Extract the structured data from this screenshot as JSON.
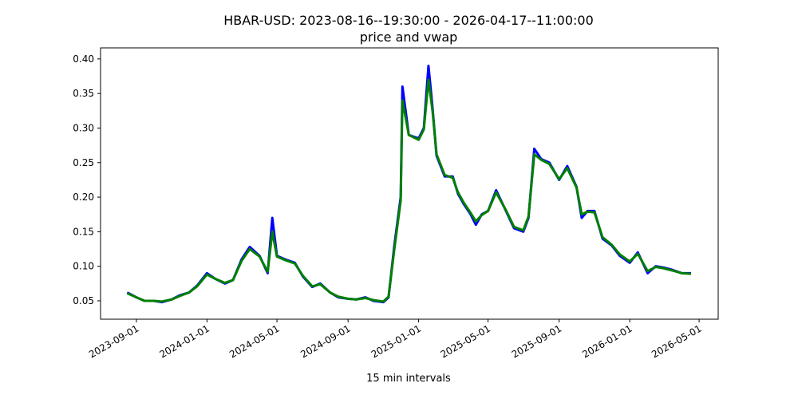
{
  "chart_data": {
    "type": "line",
    "title": "HBAR-USD: 2023-08-16--19:30:00 - 2026-04-17--11:00:00",
    "subtitle": "price and vwap",
    "x_label": "15 min intervals",
    "x": [
      "2023-08-16",
      "2023-09-01",
      "2023-09-15",
      "2023-10-01",
      "2023-10-15",
      "2023-11-01",
      "2023-11-15",
      "2023-12-01",
      "2023-12-15",
      "2024-01-01",
      "2024-01-15",
      "2024-02-01",
      "2024-02-15",
      "2024-03-01",
      "2024-03-15",
      "2024-04-01",
      "2024-04-15",
      "2024-04-23",
      "2024-05-01",
      "2024-05-15",
      "2024-06-01",
      "2024-06-15",
      "2024-07-01",
      "2024-07-15",
      "2024-08-01",
      "2024-08-15",
      "2024-09-01",
      "2024-09-15",
      "2024-10-01",
      "2024-10-15",
      "2024-11-01",
      "2024-11-10",
      "2024-11-20",
      "2024-12-01",
      "2024-12-04",
      "2024-12-15",
      "2025-01-01",
      "2025-01-10",
      "2025-01-18",
      "2025-01-25",
      "2025-02-01",
      "2025-02-15",
      "2025-03-01",
      "2025-03-10",
      "2025-03-20",
      "2025-04-01",
      "2025-04-10",
      "2025-04-20",
      "2025-05-01",
      "2025-05-15",
      "2025-06-01",
      "2025-06-15",
      "2025-07-01",
      "2025-07-10",
      "2025-07-20",
      "2025-08-01",
      "2025-08-15",
      "2025-09-01",
      "2025-09-15",
      "2025-10-01",
      "2025-10-10",
      "2025-10-20",
      "2025-11-01",
      "2025-11-15",
      "2025-12-01",
      "2025-12-15",
      "2026-01-01",
      "2026-01-15",
      "2026-02-01",
      "2026-02-15",
      "2026-03-01",
      "2026-03-15",
      "2026-04-01",
      "2026-04-17"
    ],
    "series": [
      {
        "color": "#0000ff",
        "values": [
          0.062,
          0.055,
          0.05,
          0.05,
          0.048,
          0.052,
          0.058,
          0.062,
          0.072,
          0.09,
          0.082,
          0.075,
          0.08,
          0.11,
          0.128,
          0.115,
          0.09,
          0.17,
          0.115,
          0.11,
          0.105,
          0.085,
          0.07,
          0.075,
          0.062,
          0.055,
          0.053,
          0.052,
          0.055,
          0.05,
          0.048,
          0.055,
          0.13,
          0.2,
          0.36,
          0.29,
          0.285,
          0.3,
          0.39,
          0.33,
          0.26,
          0.23,
          0.23,
          0.205,
          0.19,
          0.175,
          0.16,
          0.175,
          0.18,
          0.21,
          0.18,
          0.155,
          0.15,
          0.17,
          0.27,
          0.255,
          0.25,
          0.225,
          0.245,
          0.215,
          0.17,
          0.18,
          0.18,
          0.14,
          0.13,
          0.115,
          0.105,
          0.12,
          0.09,
          0.1,
          0.098,
          0.095,
          0.09,
          0.09
        ]
      },
      {
        "color": "#008000",
        "values": [
          0.061,
          0.055,
          0.05,
          0.05,
          0.049,
          0.052,
          0.057,
          0.062,
          0.071,
          0.088,
          0.082,
          0.076,
          0.08,
          0.108,
          0.125,
          0.114,
          0.092,
          0.15,
          0.114,
          0.109,
          0.104,
          0.086,
          0.071,
          0.074,
          0.062,
          0.056,
          0.053,
          0.052,
          0.054,
          0.051,
          0.049,
          0.056,
          0.125,
          0.195,
          0.34,
          0.29,
          0.283,
          0.298,
          0.37,
          0.325,
          0.262,
          0.232,
          0.228,
          0.207,
          0.192,
          0.177,
          0.165,
          0.174,
          0.18,
          0.207,
          0.181,
          0.157,
          0.152,
          0.172,
          0.262,
          0.254,
          0.248,
          0.226,
          0.242,
          0.214,
          0.175,
          0.179,
          0.178,
          0.142,
          0.131,
          0.117,
          0.107,
          0.118,
          0.093,
          0.099,
          0.097,
          0.094,
          0.09,
          0.089
        ]
      }
    ],
    "xlim": [
      "2023-07-01",
      "2026-06-03"
    ],
    "xticks": [
      "2023-09-01",
      "2024-01-01",
      "2024-05-01",
      "2024-09-01",
      "2025-01-01",
      "2025-05-01",
      "2025-09-01",
      "2026-01-01",
      "2026-05-01"
    ],
    "ylim": [
      0.0234,
      0.416
    ],
    "yticks": [
      0.05,
      {
        "value": 0.1,
        "label": "0.10"
      },
      0.15,
      {
        "value": 0.2,
        "label": "0.20"
      },
      0.25,
      {
        "value": 0.3,
        "label": "0.30"
      },
      0.35,
      {
        "value": 0.4,
        "label": "0.40"
      }
    ],
    "grid": false
  }
}
